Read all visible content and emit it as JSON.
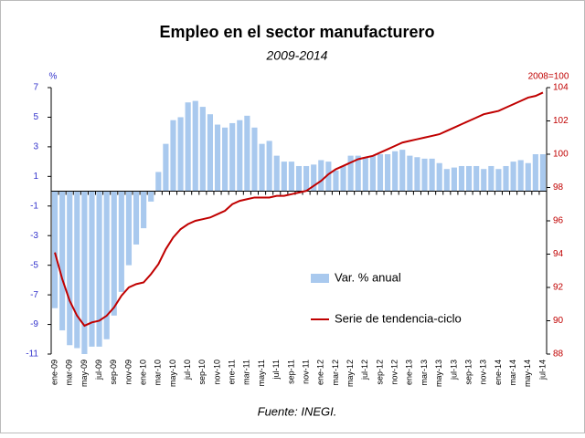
{
  "chart_data": {
    "type": "bar-line",
    "title": "Empleo en el sector manufacturero",
    "subtitle": "2009-2014",
    "y_label": "%",
    "y2_label": "2008=100",
    "source": "Fuente: INEGI.",
    "categories": [
      "ene-09",
      null,
      "mar-09",
      null,
      "may-09",
      null,
      "jul-09",
      null,
      "sep-09",
      null,
      "nov-09",
      null,
      "ene-10",
      null,
      "mar-10",
      null,
      "may-10",
      null,
      "jul-10",
      null,
      "sep-10",
      null,
      "nov-10",
      null,
      "ene-11",
      null,
      "mar-11",
      null,
      "may-11",
      null,
      "jul-11",
      null,
      "sep-11",
      null,
      "nov-11",
      null,
      "ene-12",
      null,
      "mar-12",
      null,
      "may-12",
      null,
      "jul-12",
      null,
      "sep-12",
      null,
      "nov-12",
      null,
      "ene-13",
      null,
      "mar-13",
      null,
      "may-13",
      null,
      "jul-13",
      null,
      "sep-13",
      null,
      "nov-13",
      null,
      "ene-14",
      null,
      "mar-14",
      null,
      "may-14",
      null,
      "jul-14"
    ],
    "series": [
      {
        "name": "Var. % anual",
        "type": "bar",
        "color": "#a9c9ee",
        "values": [
          -7.9,
          -9.4,
          -10.4,
          -10.6,
          -11.0,
          -10.5,
          -10.5,
          -10.0,
          -8.4,
          -6.8,
          -5.0,
          -3.6,
          -2.5,
          -0.7,
          1.3,
          3.2,
          4.8,
          5.0,
          6.0,
          6.1,
          5.7,
          5.2,
          4.5,
          4.3,
          4.6,
          4.8,
          5.1,
          4.3,
          3.2,
          3.4,
          2.4,
          2.0,
          2.0,
          1.7,
          1.7,
          1.8,
          2.1,
          2.0,
          1.4,
          1.7,
          2.4,
          2.4,
          2.3,
          2.4,
          2.5,
          2.5,
          2.7,
          2.8,
          2.4,
          2.3,
          2.2,
          2.2,
          1.9,
          1.5,
          1.6,
          1.7,
          1.7,
          1.7,
          1.5,
          1.7,
          1.5,
          1.7,
          2.0,
          2.1,
          1.9,
          2.5,
          2.5
        ]
      },
      {
        "name": "Serie de tendencia-ciclo",
        "type": "line",
        "axis": "y2",
        "color": "#c00000",
        "values": [
          94.1,
          92.5,
          91.2,
          90.3,
          89.7,
          89.9,
          90.0,
          90.3,
          90.8,
          91.5,
          92.0,
          92.2,
          92.3,
          92.8,
          93.4,
          94.3,
          95.0,
          95.5,
          95.8,
          96.0,
          96.1,
          96.2,
          96.4,
          96.6,
          97.0,
          97.2,
          97.3,
          97.4,
          97.4,
          97.4,
          97.5,
          97.5,
          97.6,
          97.7,
          97.8,
          98.1,
          98.4,
          98.8,
          99.1,
          99.3,
          99.5,
          99.7,
          99.8,
          99.9,
          100.1,
          100.3,
          100.5,
          100.7,
          100.8,
          100.9,
          101.0,
          101.1,
          101.2,
          101.4,
          101.6,
          101.8,
          102.0,
          102.2,
          102.4,
          102.5,
          102.6,
          102.8,
          103.0,
          103.2,
          103.4,
          103.5,
          103.7
        ]
      }
    ],
    "ylim": [
      -11,
      7
    ],
    "yticks": [
      -11,
      -9,
      -7,
      -5,
      -3,
      -1,
      1,
      3,
      5,
      7
    ],
    "y2lim": [
      88,
      104
    ],
    "y2ticks": [
      88,
      90,
      92,
      94,
      96,
      98,
      100,
      102,
      104
    ]
  }
}
